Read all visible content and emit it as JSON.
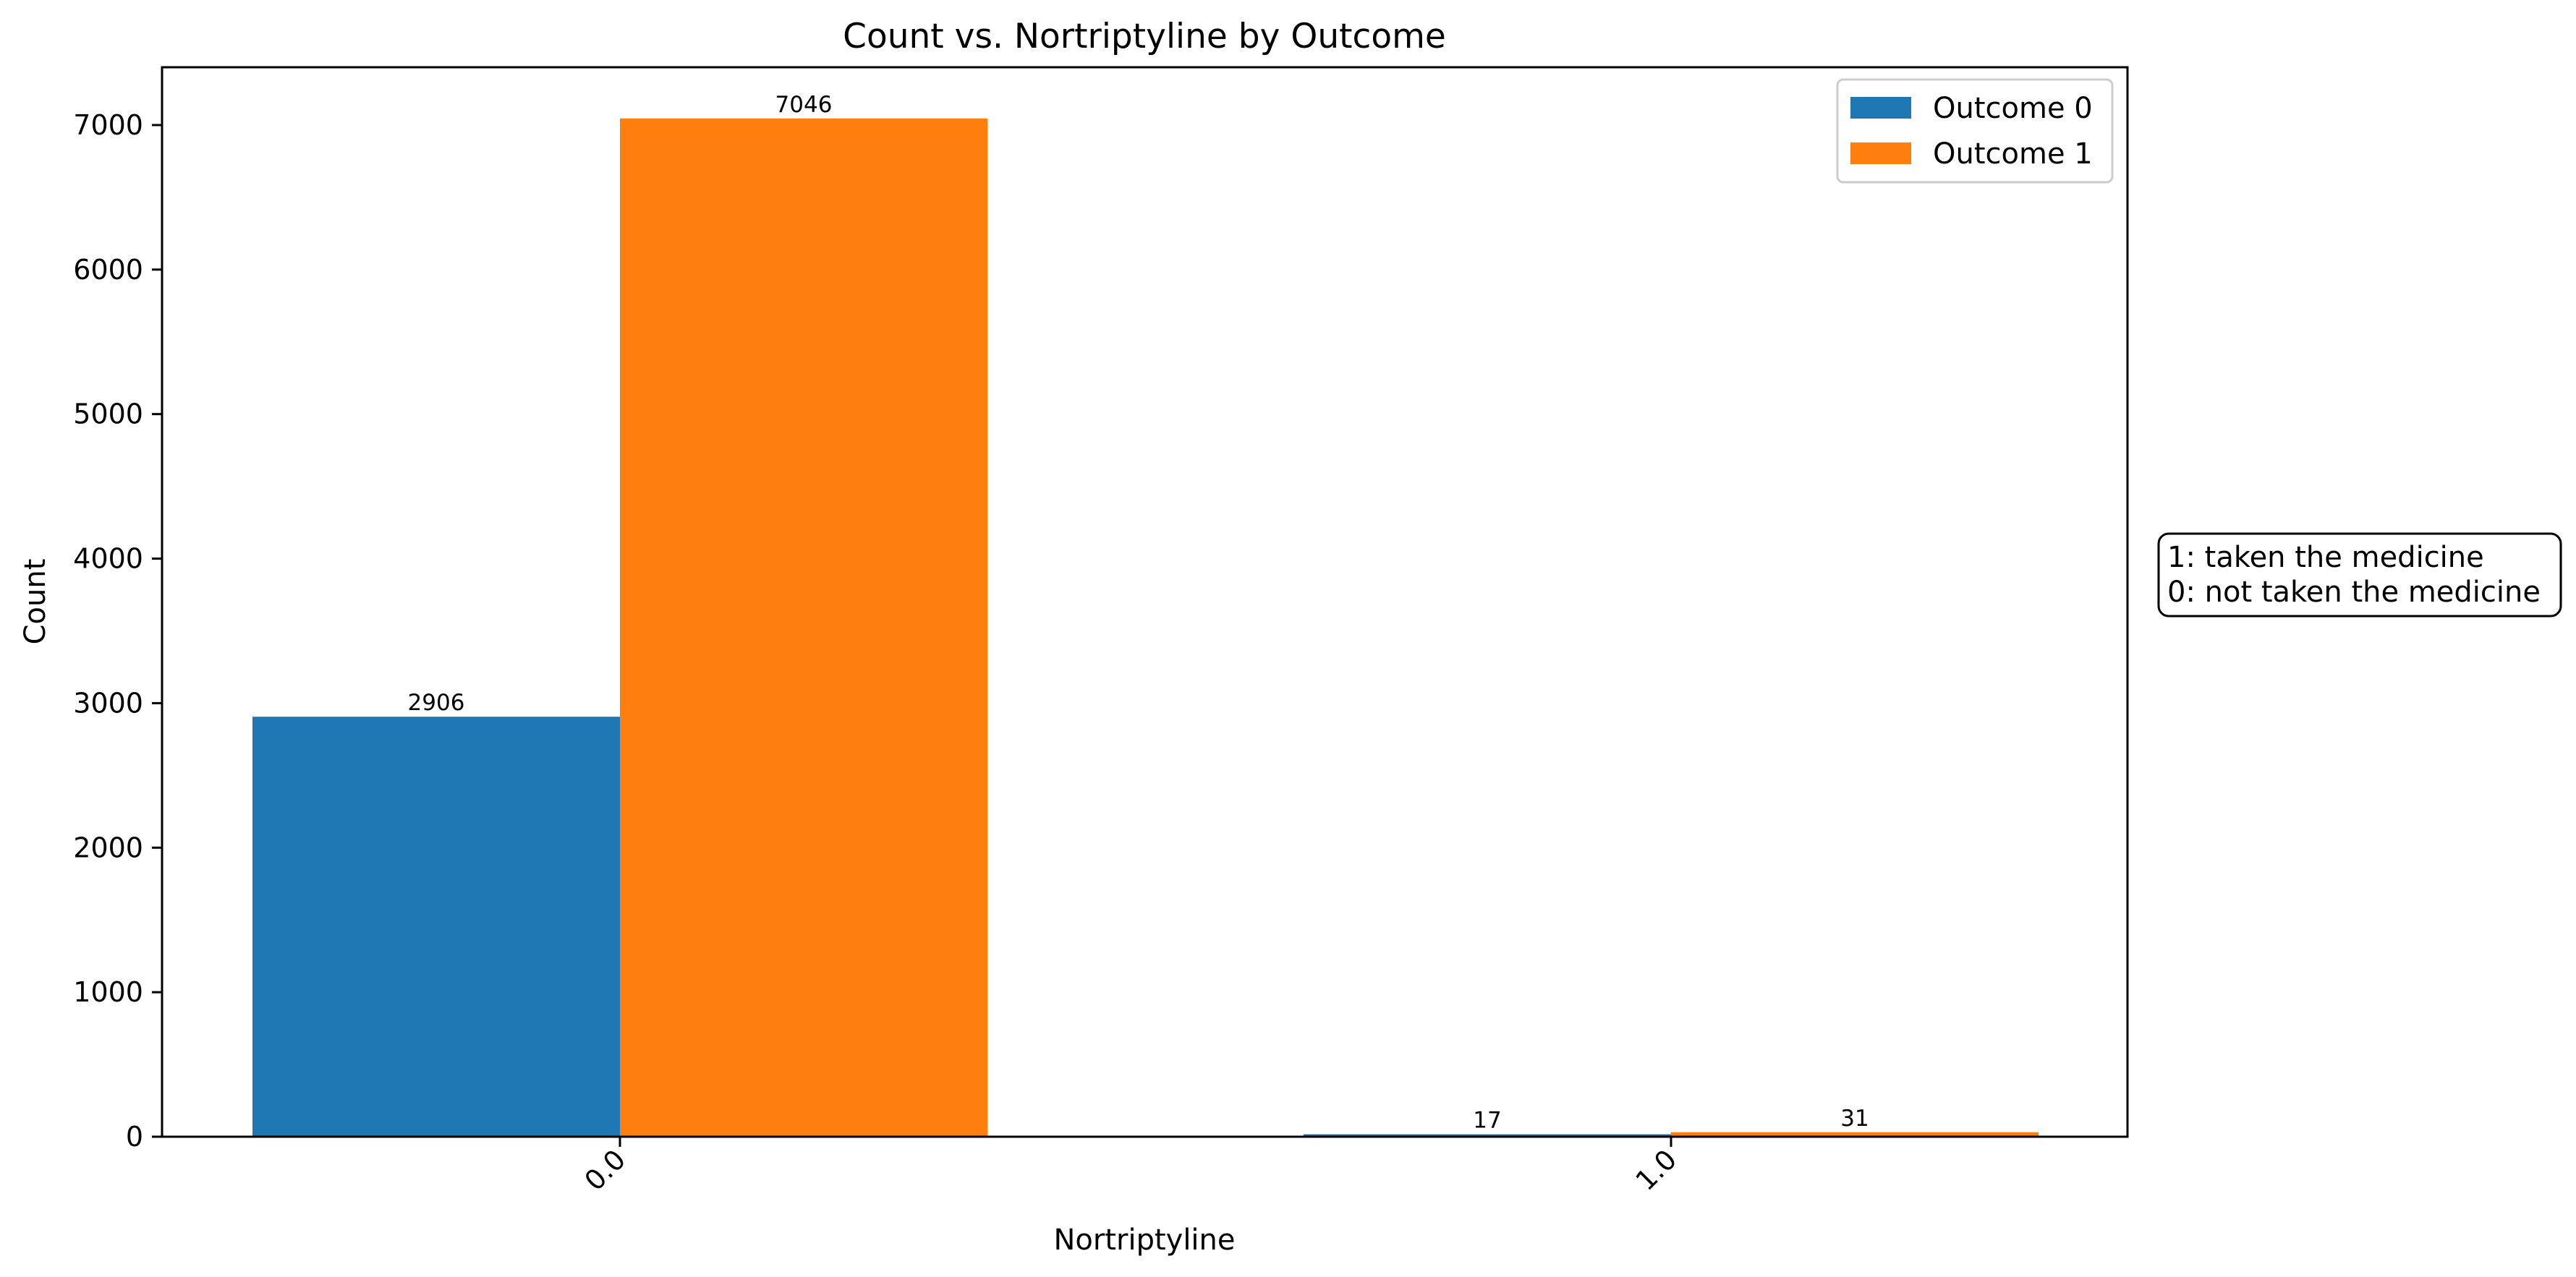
{
  "chart_data": {
    "type": "bar",
    "title": "Count vs. Nortriptyline by Outcome",
    "xlabel": "Nortriptyline",
    "ylabel": "Count",
    "categories": [
      "0.0",
      "1.0"
    ],
    "series": [
      {
        "name": "Outcome 0",
        "values": [
          2906,
          17
        ],
        "color": "#1f77b4"
      },
      {
        "name": "Outcome 1",
        "values": [
          7046,
          31
        ],
        "color": "#ff7f0e"
      }
    ],
    "ylim": [
      0,
      7400
    ],
    "yticks": [
      0,
      1000,
      2000,
      3000,
      4000,
      5000,
      6000,
      7000
    ],
    "grid": false,
    "legend_position": "top-right",
    "annotation": [
      "1: taken the medicine",
      "0: not taken the medicine"
    ]
  }
}
